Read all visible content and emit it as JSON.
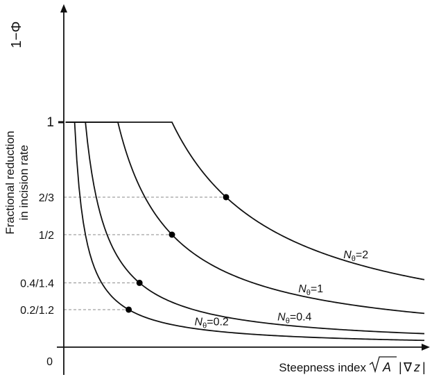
{
  "chart_data": {
    "type": "line",
    "ylabel_line1": "Fractional reduction",
    "ylabel_line2": "in incision rate",
    "ylabel_symbol": "1−Φ",
    "xlabel_text": "Steepness index",
    "xlabel_formula": {
      "sqrt_arg": "A",
      "bar_left": "|",
      "nabla": "∇",
      "z": "z",
      "bar_right": "|"
    },
    "xlim": [
      0,
      10
    ],
    "ylim": [
      0,
      1.5
    ],
    "y_ticks": [
      {
        "value": 0,
        "label": "0"
      },
      {
        "value": 0.1667,
        "label": "0.2/1.2"
      },
      {
        "value": 0.2857,
        "label": "0.4/1.4"
      },
      {
        "value": 0.5,
        "label": "1/2"
      },
      {
        "value": 0.6667,
        "label": "2/3"
      },
      {
        "value": 1,
        "label": "1"
      }
    ],
    "series": [
      {
        "name_symbol": "N",
        "name_sub": "θ",
        "name_value": "=0.2",
        "s_thresh": 0.3,
        "marker_y": 0.1667
      },
      {
        "name_symbol": "N",
        "name_sub": "θ",
        "name_value": "=0.4",
        "s_thresh": 0.6,
        "marker_y": 0.2857
      },
      {
        "name_symbol": "N",
        "name_sub": "θ",
        "name_value": "=1",
        "s_thresh": 1.5,
        "marker_y": 0.5
      },
      {
        "name_symbol": "N",
        "name_sub": "θ",
        "name_value": "=2",
        "s_thresh": 3.0,
        "marker_y": 0.6667
      }
    ],
    "line_color": "#111111",
    "guide_color": "#888888"
  }
}
